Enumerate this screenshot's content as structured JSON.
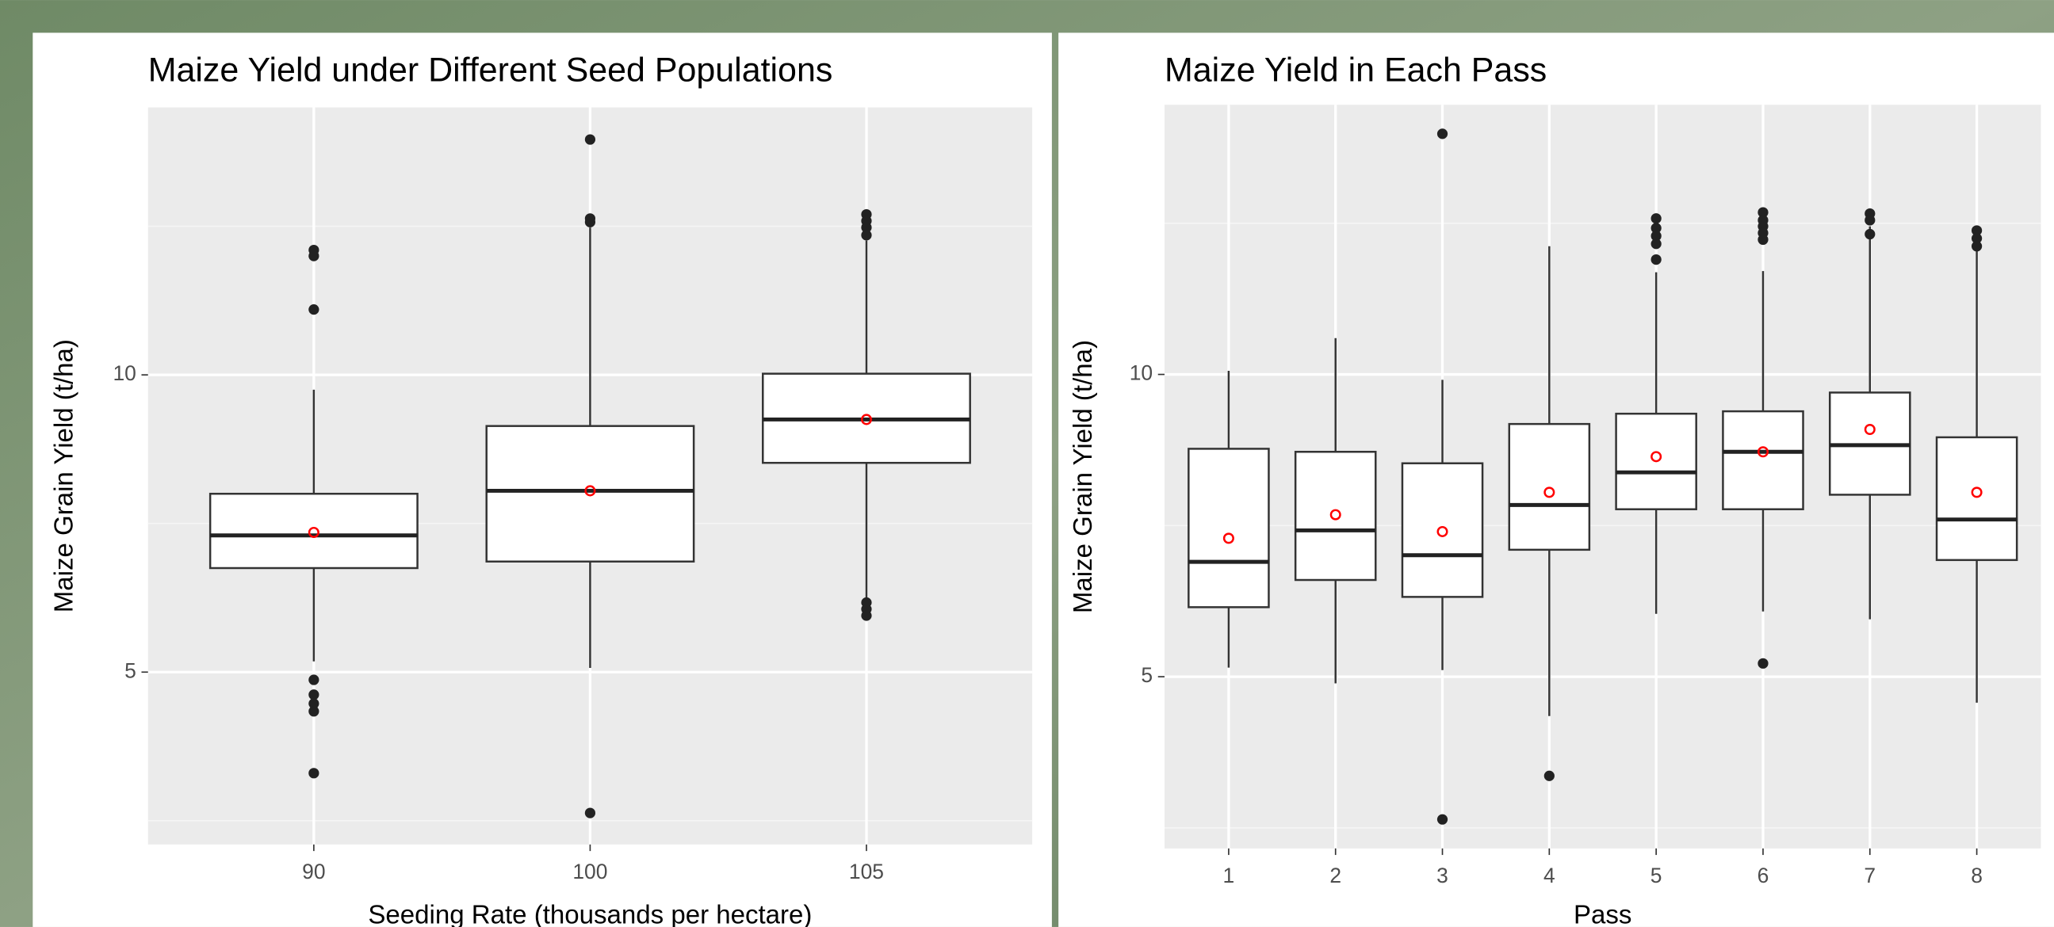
{
  "chart_data": [
    {
      "type": "box",
      "title": "Maize Yield under Different Seed Populations",
      "x_label": "Seeding Rate (thousands per hectare)",
      "y_label": "Maize Grain Yield (t/ha)",
      "categories": [
        "90",
        "100",
        "105"
      ],
      "ylim": [
        2.1,
        14.5
      ],
      "yticks": [
        5,
        10
      ],
      "minor_gridlines": [
        2.5,
        7.5,
        12.5
      ],
      "grid": true,
      "mean_color": "#ff0000",
      "boxes": [
        {
          "whislo": 5.18,
          "q1": 6.75,
          "med": 7.3,
          "q3": 8.0,
          "whishi": 9.75,
          "mean": 7.35,
          "outliers": [
            12.1,
            12.0,
            11.1,
            4.87,
            4.62,
            4.47,
            4.34,
            3.3
          ]
        },
        {
          "whislo": 5.07,
          "q1": 6.86,
          "med": 8.05,
          "q3": 9.14,
          "whishi": 12.48,
          "mean": 8.05,
          "outliers": [
            13.96,
            12.63,
            12.57,
            2.63
          ]
        },
        {
          "whislo": 6.1,
          "q1": 8.52,
          "med": 9.25,
          "q3": 10.02,
          "whishi": 12.26,
          "mean": 9.25,
          "outliers": [
            12.7,
            12.59,
            12.48,
            12.35,
            6.17,
            6.06,
            5.95
          ]
        }
      ]
    },
    {
      "type": "box",
      "title": "Maize Yield in Each Pass",
      "x_label": "Pass",
      "y_label": "Maize Grain Yield (t/ha)",
      "categories": [
        "1",
        "2",
        "3",
        "4",
        "5",
        "6",
        "7",
        "8"
      ],
      "ylim": [
        2.16,
        14.46
      ],
      "yticks": [
        5,
        10
      ],
      "minor_gridlines": [
        2.5,
        7.5,
        12.5
      ],
      "grid": true,
      "mean_color": "#ff0000",
      "boxes": [
        {
          "whislo": 5.15,
          "q1": 6.15,
          "med": 6.9,
          "q3": 8.77,
          "whishi": 10.06,
          "mean": 7.29,
          "outliers": []
        },
        {
          "whislo": 4.89,
          "q1": 6.6,
          "med": 7.42,
          "q3": 8.72,
          "whishi": 10.6,
          "mean": 7.68,
          "outliers": []
        },
        {
          "whislo": 5.11,
          "q1": 6.32,
          "med": 7.01,
          "q3": 8.53,
          "whishi": 9.91,
          "mean": 7.4,
          "outliers": [
            13.98,
            2.64
          ]
        },
        {
          "whislo": 4.35,
          "q1": 7.1,
          "med": 7.84,
          "q3": 9.18,
          "whishi": 12.12,
          "mean": 8.05,
          "outliers": [
            3.36
          ]
        },
        {
          "whislo": 6.04,
          "q1": 7.77,
          "med": 8.38,
          "q3": 9.35,
          "whishi": 11.69,
          "mean": 8.64,
          "outliers": [
            12.58,
            12.42,
            12.29,
            12.16,
            11.9
          ]
        },
        {
          "whislo": 6.08,
          "q1": 7.77,
          "med": 8.72,
          "q3": 9.39,
          "whishi": 11.71,
          "mean": 8.72,
          "outliers": [
            12.68,
            12.55,
            12.45,
            12.34,
            12.23,
            5.22
          ]
        },
        {
          "whislo": 5.95,
          "q1": 8.01,
          "med": 8.83,
          "q3": 9.7,
          "whishi": 12.45,
          "mean": 9.09,
          "outliers": [
            12.66,
            12.55,
            12.32
          ]
        },
        {
          "whislo": 4.57,
          "q1": 6.93,
          "med": 7.6,
          "q3": 8.96,
          "whishi": 12.19,
          "mean": 8.05,
          "outliers": [
            12.38,
            12.25,
            12.12
          ]
        }
      ]
    }
  ]
}
